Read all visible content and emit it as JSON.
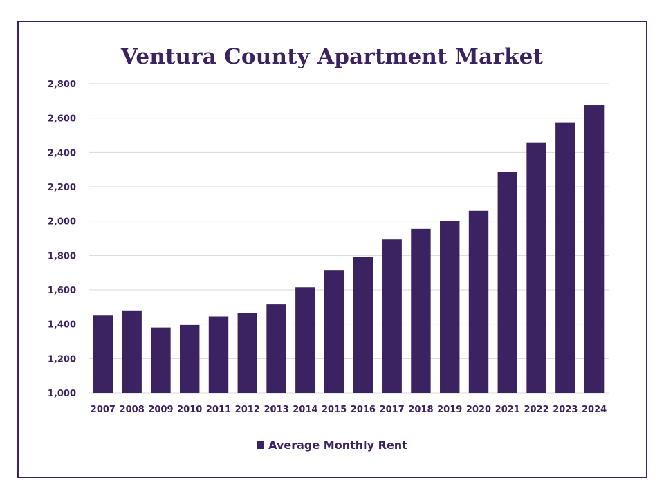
{
  "colors": {
    "bar": "#3b2260",
    "text": "#3b2260",
    "grid": "#d9d9d9",
    "border": "#3b2260"
  },
  "chart_data": {
    "type": "bar",
    "title": "Ventura County Apartment Market",
    "xlabel": "",
    "ylabel": "",
    "ylim": [
      1000,
      2800
    ],
    "y_ticks": [
      "1,000",
      "1,200",
      "1,400",
      "1,600",
      "1,800",
      "2,000",
      "2,200",
      "2,400",
      "2,600",
      "2,800"
    ],
    "y_tick_values": [
      1000,
      1200,
      1400,
      1600,
      1800,
      2000,
      2200,
      2400,
      2600,
      2800
    ],
    "grid": true,
    "legend_position": "bottom",
    "categories": [
      "2007",
      "2008",
      "2009",
      "2010",
      "2011",
      "2012",
      "2013",
      "2014",
      "2015",
      "2016",
      "2017",
      "2018",
      "2019",
      "2020",
      "2021",
      "2022",
      "2023",
      "2024"
    ],
    "series": [
      {
        "name": "Average Monthly Rent",
        "values": [
          1450,
          1480,
          1380,
          1395,
          1445,
          1465,
          1515,
          1615,
          1712,
          1790,
          1893,
          1955,
          2000,
          2060,
          2285,
          2455,
          2572,
          2675
        ]
      }
    ]
  }
}
